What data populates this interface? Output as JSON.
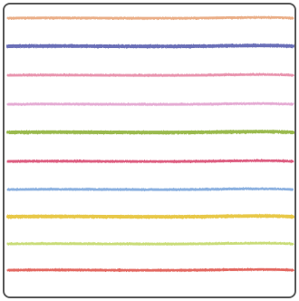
{
  "lines": [
    {
      "color": "#e8a57a",
      "width": 3
    },
    {
      "color": "#5b5fb0",
      "width": 4
    },
    {
      "color": "#e78aa6",
      "width": 3
    },
    {
      "color": "#e2a3cf",
      "width": 3
    },
    {
      "color": "#8fb33c",
      "width": 4
    },
    {
      "color": "#d94d73",
      "width": 3
    },
    {
      "color": "#7fa9dd",
      "width": 3
    },
    {
      "color": "#e5c233",
      "width": 4
    },
    {
      "color": "#c3d86a",
      "width": 3
    },
    {
      "color": "#e05a52",
      "width": 3
    }
  ]
}
